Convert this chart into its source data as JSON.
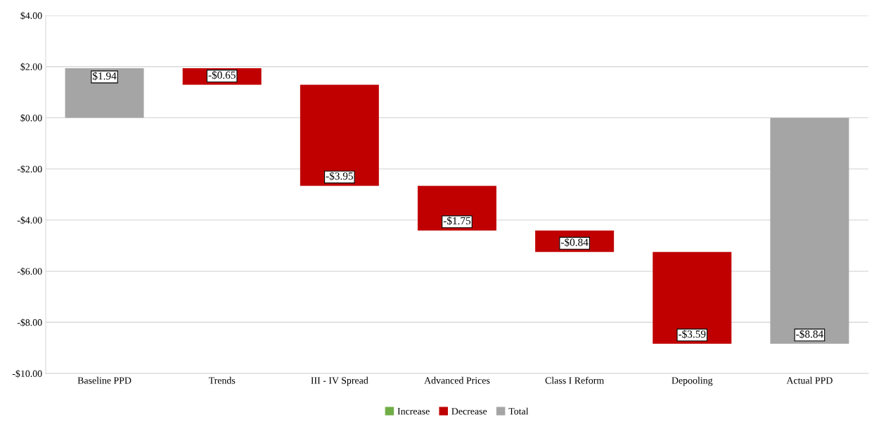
{
  "chart_data": {
    "type": "bar",
    "categories": [
      "Baseline PPD",
      "Trends",
      "III - IV Spread",
      "Advanced Prices",
      "Class I Reform",
      "Depooling",
      "Actual PPD"
    ],
    "series": [
      {
        "name": "Increase",
        "color": "#70ad47",
        "values": [
          null,
          null,
          null,
          null,
          null,
          null,
          null
        ],
        "base": [
          null,
          null,
          null,
          null,
          null,
          null,
          null
        ]
      },
      {
        "name": "Decrease",
        "color": "#c00000",
        "values": [
          null,
          -0.65,
          -3.95,
          -1.75,
          -0.84,
          -3.59,
          null
        ],
        "base": [
          null,
          1.94,
          1.29,
          -2.66,
          -4.41,
          -5.25,
          null
        ],
        "value_labels": [
          null,
          "-$0.65",
          "-$3.95",
          "-$1.75",
          "-$0.84",
          "-$3.59",
          null
        ]
      },
      {
        "name": "Total",
        "color": "#a5a5a5",
        "values": [
          1.94,
          null,
          null,
          null,
          null,
          null,
          -8.84
        ],
        "base": [
          0,
          null,
          null,
          null,
          null,
          null,
          0
        ],
        "value_labels": [
          "$1.94",
          null,
          null,
          null,
          null,
          null,
          "-$8.84"
        ]
      }
    ],
    "ylim": [
      -10,
      4
    ],
    "yticks": [
      {
        "value": -10,
        "label": "-$10.00"
      },
      {
        "value": -8,
        "label": "-$8.00"
      },
      {
        "value": -6,
        "label": "-$6.00"
      },
      {
        "value": -4,
        "label": "-$4.00"
      },
      {
        "value": -2,
        "label": "-$2.00"
      },
      {
        "value": 0,
        "label": "$0.00"
      },
      {
        "value": 2,
        "label": "$2.00"
      },
      {
        "value": 4,
        "label": "$4.00"
      }
    ],
    "grid": "y",
    "legend": "bottom"
  }
}
